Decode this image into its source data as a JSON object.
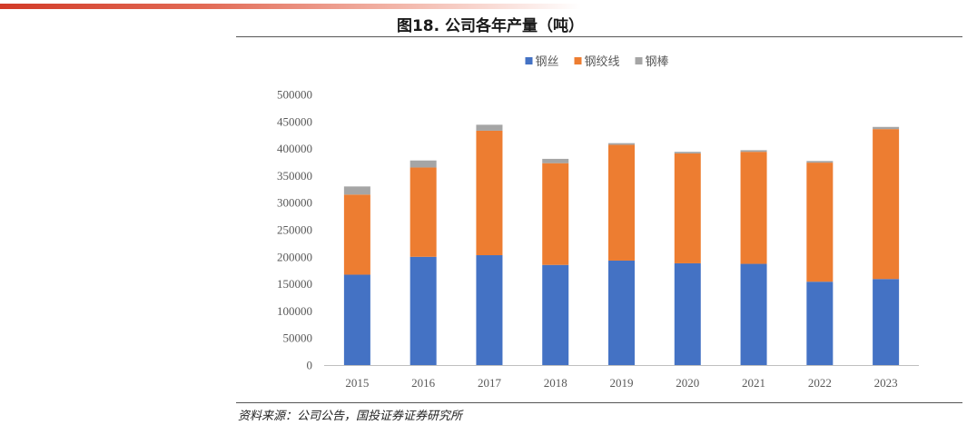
{
  "title": "图18. 公司各年产量（吨）",
  "source": "资料来源：公司公告，国投证券证券研究所",
  "chart_data": {
    "type": "bar",
    "stacked": true,
    "categories": [
      "2015",
      "2016",
      "2017",
      "2018",
      "2019",
      "2020",
      "2021",
      "2022",
      "2023"
    ],
    "series": [
      {
        "name": "钢丝",
        "color": "#4472c4",
        "values": [
          167000,
          200000,
          203000,
          185000,
          193000,
          188000,
          187000,
          154000,
          159000
        ]
      },
      {
        "name": "钢绞线",
        "color": "#ed7d31",
        "values": [
          148000,
          165000,
          230000,
          188000,
          214000,
          203000,
          207000,
          220000,
          277000
        ]
      },
      {
        "name": "钢棒",
        "color": "#a5a5a5",
        "values": [
          15000,
          13000,
          11000,
          8000,
          3000,
          3000,
          3000,
          3000,
          4000
        ]
      }
    ],
    "yticks": [
      "0",
      "50000",
      "100000",
      "150000",
      "200000",
      "250000",
      "300000",
      "350000",
      "400000",
      "450000",
      "500000"
    ],
    "ylim": [
      0,
      500000
    ],
    "legend_position": "top",
    "grid": false
  }
}
